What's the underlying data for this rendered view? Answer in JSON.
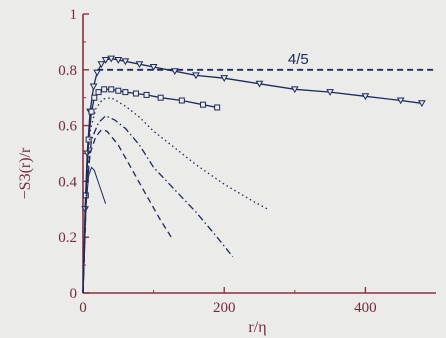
{
  "chart_data": {
    "type": "line",
    "title": "",
    "xlabel": "r/η",
    "ylabel": "−S3(r)/r",
    "xlim": [
      0,
      500
    ],
    "ylim": [
      0,
      1
    ],
    "x_ticks": [
      0,
      200,
      400
    ],
    "y_ticks": [
      0,
      0.2,
      0.4,
      0.6,
      0.8,
      1
    ],
    "x_tick_labels": [
      "0",
      "200",
      "400"
    ],
    "y_tick_labels": [
      "0",
      "0.2",
      "0.4",
      "0.6",
      "0.8",
      "1"
    ],
    "reference_line": {
      "y": 0.8,
      "label": "4/5",
      "style": "dashed"
    },
    "series": [
      {
        "style": "solid",
        "marker": "triangle-down",
        "points": [
          [
            0,
            0
          ],
          [
            3,
            0.3
          ],
          [
            6,
            0.5
          ],
          [
            10,
            0.65
          ],
          [
            15,
            0.74
          ],
          [
            20,
            0.79
          ],
          [
            26,
            0.82
          ],
          [
            32,
            0.835
          ],
          [
            40,
            0.84
          ],
          [
            50,
            0.835
          ],
          [
            60,
            0.83
          ],
          [
            80,
            0.82
          ],
          [
            100,
            0.81
          ],
          [
            130,
            0.795
          ],
          [
            160,
            0.78
          ],
          [
            200,
            0.77
          ],
          [
            250,
            0.75
          ],
          [
            300,
            0.73
          ],
          [
            350,
            0.72
          ],
          [
            400,
            0.705
          ],
          [
            450,
            0.69
          ],
          [
            480,
            0.68
          ]
        ]
      },
      {
        "style": "solid",
        "marker": "square",
        "points": [
          [
            0,
            0
          ],
          [
            4,
            0.35
          ],
          [
            8,
            0.55
          ],
          [
            12,
            0.65
          ],
          [
            16,
            0.7
          ],
          [
            22,
            0.72
          ],
          [
            30,
            0.73
          ],
          [
            40,
            0.73
          ],
          [
            50,
            0.725
          ],
          [
            60,
            0.72
          ],
          [
            75,
            0.715
          ],
          [
            90,
            0.71
          ],
          [
            110,
            0.7
          ],
          [
            140,
            0.69
          ],
          [
            170,
            0.675
          ],
          [
            190,
            0.665
          ]
        ]
      },
      {
        "style": "dotted",
        "marker": "none",
        "points": [
          [
            0,
            0
          ],
          [
            5,
            0.4
          ],
          [
            10,
            0.58
          ],
          [
            18,
            0.66
          ],
          [
            28,
            0.695
          ],
          [
            40,
            0.7
          ],
          [
            60,
            0.67
          ],
          [
            80,
            0.63
          ],
          [
            100,
            0.58
          ],
          [
            130,
            0.52
          ],
          [
            160,
            0.46
          ],
          [
            200,
            0.39
          ],
          [
            240,
            0.33
          ],
          [
            262,
            0.3
          ]
        ]
      },
      {
        "style": "dash-dot",
        "marker": "none",
        "points": [
          [
            0,
            0
          ],
          [
            5,
            0.38
          ],
          [
            12,
            0.55
          ],
          [
            22,
            0.61
          ],
          [
            32,
            0.635
          ],
          [
            45,
            0.62
          ],
          [
            60,
            0.59
          ],
          [
            80,
            0.53
          ],
          [
            100,
            0.45
          ],
          [
            130,
            0.37
          ],
          [
            160,
            0.29
          ],
          [
            190,
            0.2
          ],
          [
            212,
            0.13
          ]
        ]
      },
      {
        "style": "dashed",
        "marker": "none",
        "points": [
          [
            0,
            0
          ],
          [
            5,
            0.36
          ],
          [
            10,
            0.5
          ],
          [
            18,
            0.56
          ],
          [
            26,
            0.585
          ],
          [
            34,
            0.58
          ],
          [
            50,
            0.53
          ],
          [
            70,
            0.44
          ],
          [
            90,
            0.35
          ],
          [
            110,
            0.26
          ],
          [
            125,
            0.2
          ]
        ]
      },
      {
        "style": "solid-thin",
        "marker": "none",
        "points": [
          [
            0,
            0
          ],
          [
            4,
            0.3
          ],
          [
            8,
            0.42
          ],
          [
            12,
            0.45
          ],
          [
            16,
            0.44
          ],
          [
            20,
            0.41
          ],
          [
            24,
            0.38
          ],
          [
            28,
            0.35
          ],
          [
            32,
            0.32
          ]
        ]
      }
    ],
    "grid": false,
    "legend": "none",
    "colors": {
      "axes": "#8a2f3f",
      "lines": "#1d2a5a",
      "labels": "#7a2a3a"
    }
  }
}
